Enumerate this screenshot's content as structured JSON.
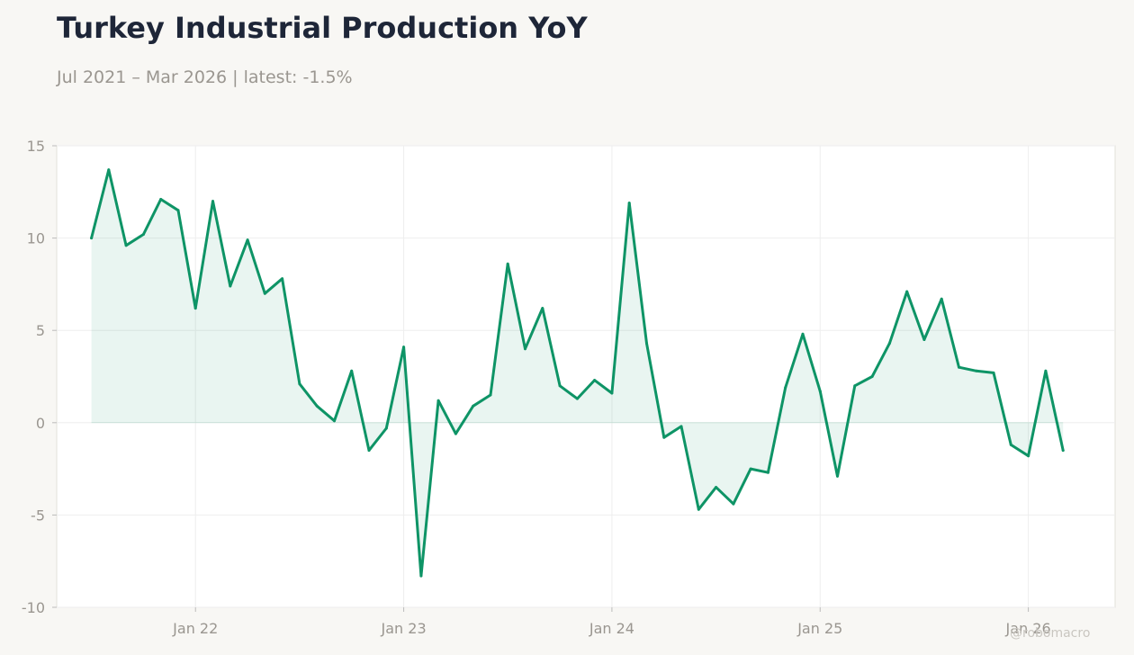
{
  "title": "Turkey Industrial Production YoY",
  "subtitle": "Jul 2021 – Mar 2026 | latest: -1.5%",
  "watermark": "@robomacro",
  "colors": {
    "background": "#f8f7f4",
    "plot_background": "#ffffff",
    "line": "#0e9466",
    "fill": "#0e9466",
    "grid": "#eeeeee",
    "axis_text": "#9a9690",
    "title": "#1e2638"
  },
  "chart_data": {
    "type": "area",
    "title": "Turkey Industrial Production YoY",
    "subtitle": "Jul 2021 – Mar 2026 | latest: -1.5%",
    "xlabel": "",
    "ylabel": "",
    "ylim": [
      -10,
      15
    ],
    "yticks": [
      -10,
      -5,
      0,
      5,
      10,
      15
    ],
    "xticks": [
      {
        "label": "Jan 22",
        "date": "2022-01"
      },
      {
        "label": "Jan 23",
        "date": "2023-01"
      },
      {
        "label": "Jan 24",
        "date": "2024-01"
      },
      {
        "label": "Jan 25",
        "date": "2025-01"
      },
      {
        "label": "Jan 26",
        "date": "2026-01"
      }
    ],
    "x_range": [
      "2021-05",
      "2026-06"
    ],
    "grid": true,
    "legend": "none",
    "series": [
      {
        "x": [
          "2021-07",
          "2021-08",
          "2021-09",
          "2021-10",
          "2021-11",
          "2021-12",
          "2022-01",
          "2022-02",
          "2022-03",
          "2022-04",
          "2022-05",
          "2022-06",
          "2022-07",
          "2022-08",
          "2022-09",
          "2022-10",
          "2022-11",
          "2022-12",
          "2023-01",
          "2023-02",
          "2023-03",
          "2023-04",
          "2023-05",
          "2023-06",
          "2023-07",
          "2023-08",
          "2023-09",
          "2023-10",
          "2023-11",
          "2023-12",
          "2024-01",
          "2024-02",
          "2024-03",
          "2024-04",
          "2024-05",
          "2024-06",
          "2024-07",
          "2024-08",
          "2024-09",
          "2024-10",
          "2024-11",
          "2024-12",
          "2025-01",
          "2025-02",
          "2025-03",
          "2025-04",
          "2025-05",
          "2025-06",
          "2025-07",
          "2025-08",
          "2025-09",
          "2025-10",
          "2025-11",
          "2025-12",
          "2026-01",
          "2026-02",
          "2026-03"
        ],
        "values": [
          10.0,
          13.7,
          9.6,
          10.2,
          12.1,
          11.5,
          6.2,
          12.0,
          7.4,
          9.9,
          7.0,
          7.8,
          2.1,
          0.9,
          0.1,
          2.8,
          -1.5,
          -0.3,
          4.1,
          -8.3,
          1.2,
          -0.6,
          0.9,
          1.5,
          8.6,
          4.0,
          6.2,
          2.0,
          1.3,
          2.3,
          1.6,
          11.9,
          4.3,
          -0.8,
          -0.2,
          -4.7,
          -3.5,
          -4.4,
          -2.5,
          -2.7,
          1.9,
          4.8,
          1.7,
          -2.9,
          2.0,
          2.5,
          4.3,
          7.1,
          4.5,
          6.7,
          3.0,
          2.8,
          2.7,
          -1.2,
          -1.8,
          2.8,
          -1.5
        ]
      }
    ]
  }
}
